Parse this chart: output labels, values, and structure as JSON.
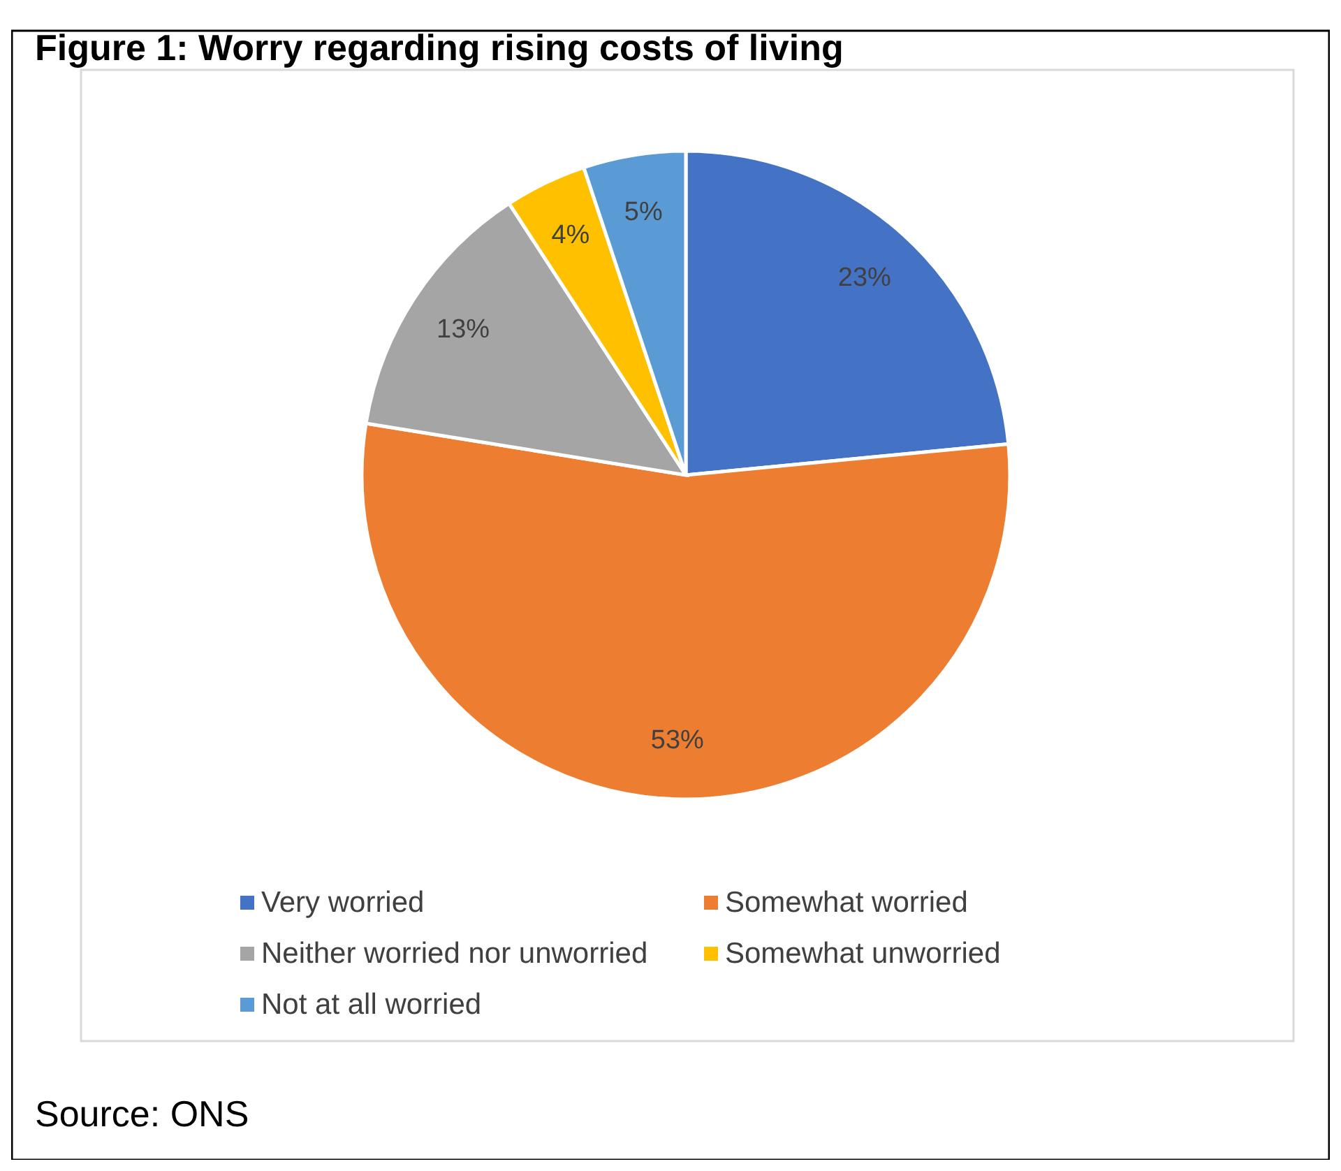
{
  "chart_data": {
    "type": "pie",
    "title": "Figure 1: Worry regarding rising costs of living",
    "categories": [
      "Very worried",
      "Somewhat worried",
      "Neither worried nor unworried",
      "Somewhat unworried",
      "Not at all worried"
    ],
    "values": [
      23,
      53,
      13,
      4,
      5
    ],
    "colors": [
      "#4472c4",
      "#ed7d31",
      "#a5a5a5",
      "#ffc000",
      "#5b9bd5"
    ],
    "value_labels": [
      "23%",
      "53%",
      "13%",
      "4%",
      "5%"
    ],
    "legend": "bottom",
    "annotations": [
      "Source: ONS"
    ]
  }
}
